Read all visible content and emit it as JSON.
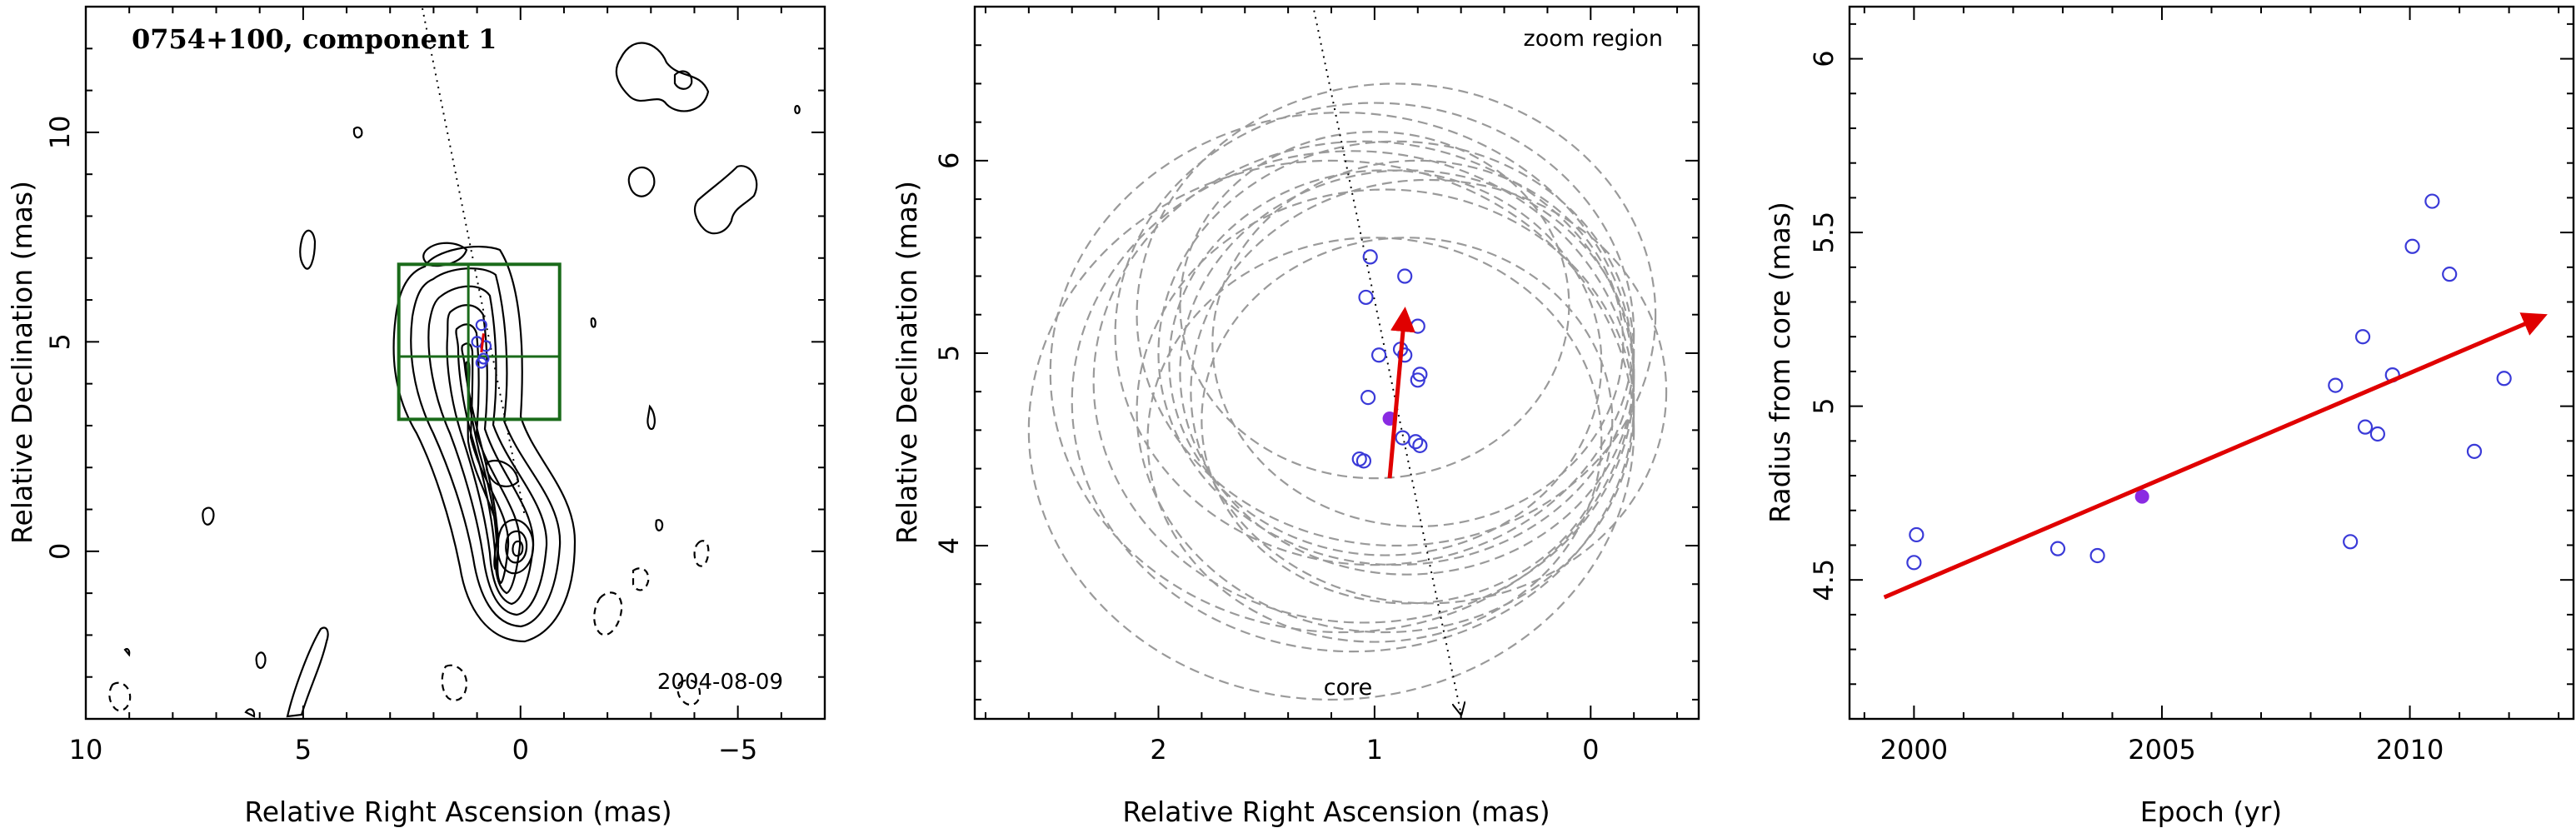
{
  "figure": {
    "panel1": {
      "title": "0754+100, component 1",
      "epoch_label": "2004-08-09",
      "xlabel": "Relative Right Ascension (mas)",
      "ylabel": "Relative Declination (mas)",
      "xlim": [
        10,
        -7
      ],
      "ylim": [
        -4,
        13
      ],
      "xticks": [
        "10",
        "5",
        "0",
        "−5"
      ],
      "yticks": [
        "0",
        "5",
        "10"
      ],
      "box_color": "#1a6b1a"
    },
    "panel2": {
      "title": "zoom region",
      "core_label": "core",
      "xlabel": "Relative Right Ascension (mas)",
      "ylabel": "Relative Declination (mas)",
      "xlim": [
        2.85,
        -0.5
      ],
      "ylim": [
        3.1,
        6.8
      ],
      "xticks": [
        "2",
        "1",
        "0"
      ],
      "yticks": [
        "4",
        "5",
        "6"
      ]
    },
    "panel3": {
      "xlabel": "Epoch (yr)",
      "ylabel": "Radius from core (mas)",
      "xlim": [
        1998.7,
        2013.3
      ],
      "ylim": [
        4.1,
        6.15
      ],
      "xticks": [
        "2000",
        "2005",
        "2010"
      ],
      "yticks": [
        "4.5",
        "5",
        "5.5",
        "6"
      ]
    }
  },
  "chart_data": [
    {
      "type": "scatter",
      "panel": "left",
      "title": "0754+100, component 1",
      "annotation": "2004-08-09",
      "xlabel": "Relative Right Ascension (mas)",
      "ylabel": "Relative Declination (mas)",
      "xlim": [
        10,
        -7
      ],
      "ylim": [
        -4,
        13
      ],
      "series": [
        {
          "kind": "component_positions",
          "x": [
            0.9,
            1.0,
            0.8,
            0.85,
            0.9
          ],
          "y": [
            5.4,
            5.0,
            4.9,
            4.6,
            4.5
          ]
        }
      ],
      "zoom_box": {
        "ra": [
          -0.9,
          2.8
        ],
        "dec": [
          3.15,
          6.85
        ],
        "split_dec": 4.65
      }
    },
    {
      "type": "scatter",
      "panel": "middle",
      "title": "zoom region",
      "xlabel": "Relative Right Ascension (mas)",
      "ylabel": "Relative Declination (mas)",
      "xlim": [
        2.85,
        -0.5
      ],
      "ylim": [
        3.1,
        6.8
      ],
      "grid": false,
      "series": [
        {
          "kind": "component_positions",
          "x": [
            1.02,
            1.04,
            0.86,
            0.98,
            0.88,
            0.86,
            0.8,
            0.79,
            0.8,
            1.03,
            0.87,
            0.81,
            0.79,
            1.05,
            1.07
          ],
          "y": [
            5.5,
            5.29,
            5.4,
            4.99,
            5.02,
            4.99,
            5.14,
            4.89,
            4.86,
            4.77,
            4.56,
            4.54,
            4.52,
            4.44,
            4.45
          ]
        },
        {
          "kind": "reference_epoch",
          "x": [
            0.93
          ],
          "y": [
            4.66
          ]
        }
      ],
      "error_circles": [
        {
          "ra": 0.9,
          "dec": 5.0,
          "r": 1.1
        },
        {
          "ra": 1.0,
          "dec": 5.1,
          "r": 1.2
        },
        {
          "ra": 0.95,
          "dec": 4.95,
          "r": 1.0
        },
        {
          "ra": 1.05,
          "dec": 4.85,
          "r": 1.25
        },
        {
          "ra": 0.85,
          "dec": 4.9,
          "r": 1.05
        },
        {
          "ra": 1.1,
          "dec": 4.75,
          "r": 1.3
        },
        {
          "ra": 0.8,
          "dec": 5.05,
          "r": 0.95
        },
        {
          "ra": 0.95,
          "dec": 4.7,
          "r": 1.15
        },
        {
          "ra": 1.0,
          "dec": 5.25,
          "r": 0.9
        },
        {
          "ra": 1.15,
          "dec": 4.9,
          "r": 1.35
        },
        {
          "ra": 0.75,
          "dec": 4.8,
          "r": 1.1
        },
        {
          "ra": 0.9,
          "dec": 5.2,
          "r": 1.2
        },
        {
          "ra": 1.2,
          "dec": 4.6,
          "r": 1.4
        },
        {
          "ra": 0.85,
          "dec": 4.65,
          "r": 0.95
        },
        {
          "ra": 1.0,
          "dec": 4.55,
          "r": 1.05
        }
      ],
      "motion_arrow": {
        "from": [
          0.93,
          4.35
        ],
        "to": [
          0.86,
          5.22
        ]
      },
      "core_direction_line": {
        "from": [
          1.28,
          6.78
        ],
        "to": [
          0.6,
          3.1
        ]
      }
    },
    {
      "type": "scatter",
      "panel": "right",
      "xlabel": "Epoch (yr)",
      "ylabel": "Radius from core (mas)",
      "xlim": [
        1998.7,
        2013.3
      ],
      "ylim": [
        4.1,
        6.15
      ],
      "series": [
        {
          "kind": "measurements",
          "x": [
            2000.0,
            2000.05,
            2002.9,
            2003.7,
            2008.5,
            2008.8,
            2009.05,
            2009.1,
            2009.35,
            2009.65,
            2010.05,
            2010.45,
            2010.8,
            2011.3,
            2011.9
          ],
          "y": [
            4.55,
            4.63,
            4.59,
            4.57,
            5.06,
            4.61,
            5.2,
            4.94,
            4.92,
            5.09,
            5.46,
            5.59,
            5.38,
            4.87,
            5.08
          ]
        },
        {
          "kind": "reference_epoch",
          "x": [
            2004.6
          ],
          "y": [
            4.74
          ]
        }
      ],
      "fit_arrow": {
        "from": [
          1999.4,
          4.45
        ],
        "to": [
          2012.7,
          5.26
        ]
      }
    }
  ]
}
